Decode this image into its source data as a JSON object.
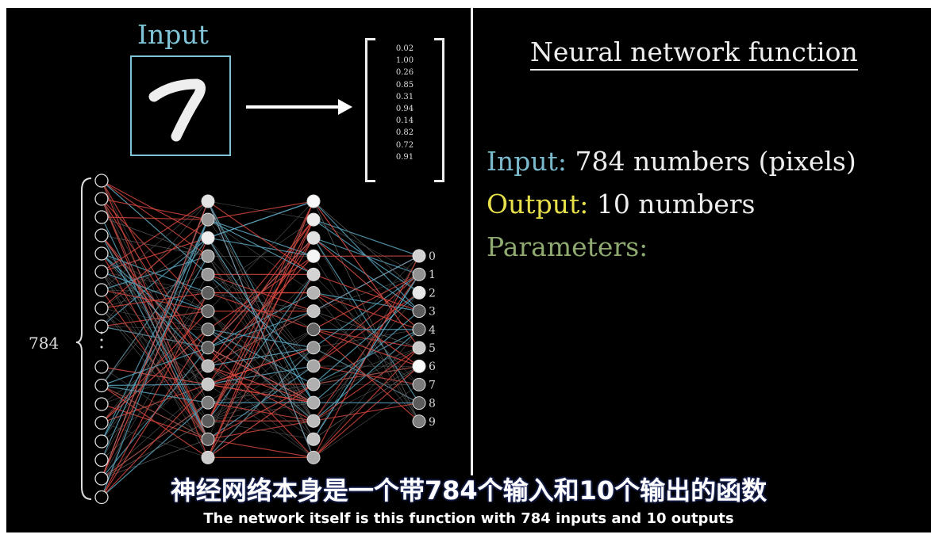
{
  "input_title": "Input",
  "input_vector": [
    "0.02",
    "1.00",
    "0.26",
    "0.85",
    "0.31",
    "0.94",
    "0.14",
    "0.82",
    "0.72",
    "0.91"
  ],
  "input_count": "784",
  "output_labels": [
    "0",
    "1",
    "2",
    "3",
    "4",
    "5",
    "6",
    "7",
    "8",
    "9"
  ],
  "heading": "Neural network function",
  "input_line": {
    "label": "Input:",
    "text": "784 numbers (pixels)"
  },
  "output_line": {
    "label": "Output:",
    "text": "10 numbers"
  },
  "parameters_label": "Parameters:",
  "subtitle_zh": "神经网络本身是一个带784个输入和10个输出的函数",
  "subtitle_en": "The network itself is this function with 784 inputs and 10 outputs"
}
